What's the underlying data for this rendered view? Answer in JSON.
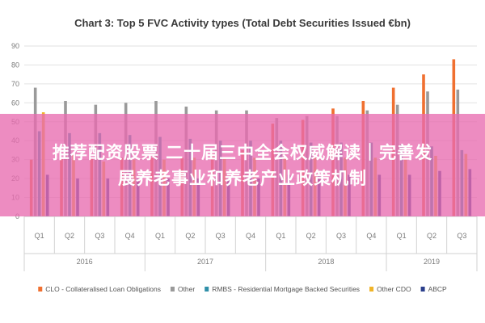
{
  "chart_data": {
    "type": "bar",
    "title": "Chart 3: Top 5 FVC Activity types (Total Debt Securities Issued €bn)",
    "ylim": [
      0,
      90
    ],
    "yticks": [
      0,
      10,
      20,
      30,
      40,
      50,
      60,
      70,
      80,
      90
    ],
    "grid": true,
    "legend_position": "bottom",
    "categories": [
      "Q1",
      "Q2",
      "Q3",
      "Q4",
      "Q1",
      "Q2",
      "Q3",
      "Q4",
      "Q1",
      "Q2",
      "Q3",
      "Q4",
      "Q1",
      "Q2",
      "Q3"
    ],
    "groups": [
      {
        "label": "2016",
        "count": 4
      },
      {
        "label": "2017",
        "count": 4
      },
      {
        "label": "2018",
        "count": 4
      },
      {
        "label": "2019",
        "count": 3
      }
    ],
    "series": [
      {
        "name": "CLO - Collateralised Loan Obligations",
        "color": "#f07030",
        "values": [
          30,
          31,
          31,
          31,
          31,
          31,
          33,
          35,
          49,
          51,
          57,
          61,
          68,
          75,
          83
        ]
      },
      {
        "name": "Other",
        "color": "#9a9a9a",
        "values": [
          68,
          61,
          59,
          60,
          61,
          58,
          56,
          56,
          52,
          53,
          53,
          56,
          59,
          66,
          67
        ]
      },
      {
        "name": "RMBS - Residential Mortgage Backed Securities",
        "color": "#2f8fa8",
        "values": [
          45,
          44,
          44,
          43,
          42,
          41,
          40,
          40,
          40,
          39,
          39,
          39,
          38,
          37,
          35
        ]
      },
      {
        "name": "Other CDO",
        "color": "#f0b428",
        "values": [
          55,
          33,
          29,
          30,
          30,
          31,
          31,
          31,
          31,
          31,
          31,
          31,
          31,
          32,
          33
        ]
      },
      {
        "name": "ABCP",
        "color": "#2b3f8c",
        "values": [
          22,
          20,
          20,
          20,
          20,
          20,
          20,
          20,
          22,
          22,
          22,
          22,
          22,
          24,
          25
        ]
      }
    ]
  },
  "banner": {
    "line1": "推荐配资股票 二十届三中全会权威解读｜完善发",
    "line2": "展养老事业和养老产业政策机制"
  }
}
